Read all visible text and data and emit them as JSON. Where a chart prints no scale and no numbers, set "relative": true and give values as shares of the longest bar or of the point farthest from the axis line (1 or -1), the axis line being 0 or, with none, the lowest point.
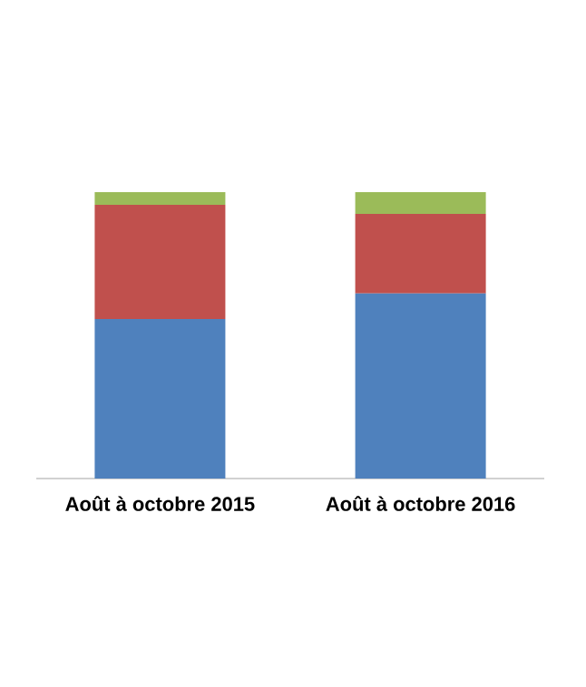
{
  "chart_data": {
    "type": "bar",
    "stacked": true,
    "relative": true,
    "categories": [
      "Août à octobre 2015",
      "Août à octobre 2016"
    ],
    "series": [
      {
        "color": "#4f81bd",
        "values": [
          0.557,
          0.646
        ]
      },
      {
        "color": "#c0504d",
        "values": [
          0.399,
          0.278
        ]
      },
      {
        "color": "#9bbb59",
        "values": [
          0.044,
          0.076
        ]
      }
    ]
  }
}
